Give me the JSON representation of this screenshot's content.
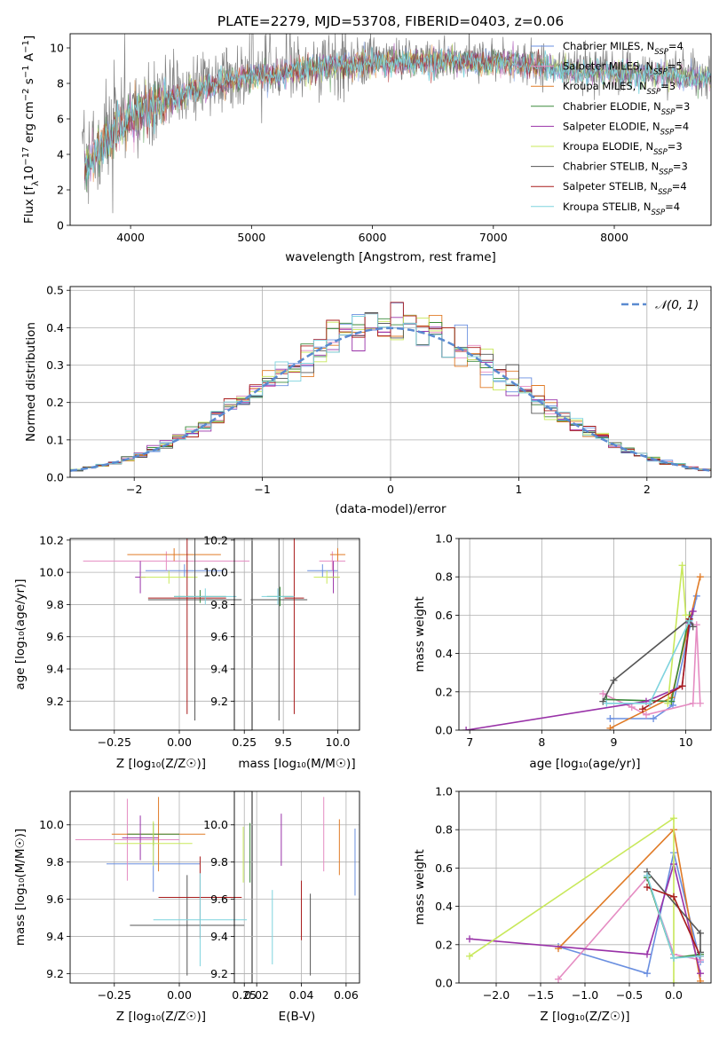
{
  "colors": [
    "#6a8fe0",
    "#e58cc2",
    "#e07b27",
    "#3b8a3b",
    "#9932a8",
    "#c8e85a",
    "#555555",
    "#a81b1b",
    "#7ed3de"
  ],
  "chart_data": [
    {
      "id": "spectrum",
      "type": "line",
      "title": "PLATE=2279, MJD=53708, FIBERID=0403, z=0.06",
      "xlabel": "wavelength [Angstrom, rest frame]",
      "ylabel_parts": [
        "Flux [f",
        "λ",
        "10",
        "−17",
        " erg cm",
        "−2",
        " s",
        "−1",
        " A",
        "−1",
        "]"
      ],
      "xlim": [
        3500,
        8800
      ],
      "ylim": [
        0,
        10.8
      ],
      "xticks": [
        4000,
        5000,
        6000,
        7000,
        8000
      ],
      "yticks": [
        0,
        2,
        4,
        6,
        8,
        10
      ],
      "grid": false,
      "legend_position": "right",
      "data_color": "#808080",
      "continuum": {
        "x": [
          3600,
          3800,
          4000,
          4200,
          4500,
          4800,
          5000,
          5300,
          5600,
          6000,
          6500,
          7000,
          7300,
          7500,
          8000,
          8500,
          8800
        ],
        "y": [
          3.4,
          4.8,
          6.3,
          7.0,
          7.8,
          8.3,
          8.6,
          8.8,
          9.1,
          9.3,
          9.4,
          9.4,
          9.2,
          9.0,
          8.8,
          8.6,
          8.4
        ]
      },
      "series": [
        {
          "label": "Chabrier MILES, N",
          "sub": "SSP",
          "tail": "=4"
        },
        {
          "label": "Salpeter MILES, N",
          "sub": "SSP",
          "tail": "=5"
        },
        {
          "label": "Kroupa MILES, N",
          "sub": "SSP",
          "tail": "=3"
        },
        {
          "label": "Chabrier ELODIE, N",
          "sub": "SSP",
          "tail": "=3"
        },
        {
          "label": "Salpeter ELODIE, N",
          "sub": "SSP",
          "tail": "=4"
        },
        {
          "label": "Kroupa ELODIE, N",
          "sub": "SSP",
          "tail": "=3"
        },
        {
          "label": "Chabrier STELIB, N",
          "sub": "SSP",
          "tail": "=3"
        },
        {
          "label": "Salpeter STELIB, N",
          "sub": "SSP",
          "tail": "=4"
        },
        {
          "label": "Kroupa STELIB, N",
          "sub": "SSP",
          "tail": "=4"
        }
      ]
    },
    {
      "id": "residuals",
      "type": "histogram",
      "xlabel": "(data-model)/error",
      "ylabel": "Normed distribution",
      "xlim": [
        -2.5,
        2.5
      ],
      "ylim": [
        0,
        0.51
      ],
      "xticks": [
        -2,
        -1,
        0,
        1,
        2
      ],
      "xtick_labels": [
        "−2",
        "−1",
        "0",
        "1",
        "2"
      ],
      "yticks": [
        0.0,
        0.1,
        0.2,
        0.3,
        0.4,
        0.5
      ],
      "ytick_labels": [
        "0.0",
        "0.1",
        "0.2",
        "0.3",
        "0.4",
        "0.5"
      ],
      "grid": true,
      "bin_width": 0.1,
      "reference_curve": {
        "label": "𝒩(0, 1)",
        "mean": 0,
        "sigma": 1,
        "color": "#5a8ad0"
      },
      "legend_position": "top-right"
    },
    {
      "id": "age-vs-Z",
      "type": "errorbar",
      "xlabel": "Z [log₁₀(Z/Z☉)]",
      "ylabel": "age  [log₁₀(age/yr)]",
      "xlim": [
        -0.42,
        0.28
      ],
      "ylim": [
        9.02,
        10.21
      ],
      "xticks": [
        -0.25,
        0.0,
        0.25
      ],
      "xtick_labels": [
        "−0.25",
        "0.00",
        "0.25"
      ],
      "yticks": [
        9.2,
        9.4,
        9.6,
        9.8,
        10.0,
        10.2
      ],
      "ytick_labels": [
        "9.2",
        "9.4",
        "9.6",
        "9.8",
        "10.0",
        "10.2"
      ],
      "points": [
        {
          "x": 0.02,
          "xerr": 0.15,
          "y": 10.01,
          "yerr": 0.04
        },
        {
          "x": -0.05,
          "xerr": 0.32,
          "y": 10.07,
          "yerr": 0.06
        },
        {
          "x": -0.02,
          "xerr": 0.18,
          "y": 10.11,
          "yerr": 0.04
        },
        {
          "x": 0.08,
          "xerr": 0.1,
          "y": 9.85,
          "yerr": 0.04
        },
        {
          "x": -0.15,
          "xerr": 0.02,
          "y": 9.97,
          "yerr": 0.1
        },
        {
          "x": -0.04,
          "xerr": 0.11,
          "y": 9.97,
          "yerr": 0.04
        },
        {
          "x": 0.06,
          "xerr": 0.18,
          "y": 9.83,
          "yerr": 0.75
        },
        {
          "x": 0.03,
          "xerr": 0.15,
          "y": 9.84,
          "yerr": 0.72
        },
        {
          "x": 0.1,
          "xerr": 0.12,
          "y": 9.85,
          "yerr": 0.05
        }
      ]
    },
    {
      "id": "age-vs-mass",
      "type": "errorbar",
      "xlabel": "mass [log₁₀(M/M☉)]",
      "ylabel": "",
      "xlim": [
        9.05,
        10.2
      ],
      "ylim": [
        9.02,
        10.21
      ],
      "xticks": [
        9.5,
        10.0
      ],
      "xtick_labels": [
        "9.5",
        "10.0"
      ],
      "yticks": [
        9.2,
        9.4,
        9.6,
        9.8,
        10.0,
        10.2
      ],
      "ytick_labels": [
        "9.2",
        "9.4",
        "9.6",
        "9.8",
        "10.0",
        "10.2"
      ],
      "points": [
        {
          "x": 9.86,
          "xerr": 0.14,
          "y": 10.01,
          "yerr": 0.04
        },
        {
          "x": 9.95,
          "xerr": 0.12,
          "y": 10.07,
          "yerr": 0.06
        },
        {
          "x": 10.0,
          "xerr": 0.07,
          "y": 10.11,
          "yerr": 0.04
        },
        {
          "x": 9.47,
          "xerr": 0.12,
          "y": 9.85,
          "yerr": 0.06
        },
        {
          "x": 9.96,
          "xerr": 0.05,
          "y": 9.97,
          "yerr": 0.1
        },
        {
          "x": 9.9,
          "xerr": 0.12,
          "y": 9.97,
          "yerr": 0.04
        },
        {
          "x": 9.46,
          "xerr": 0.26,
          "y": 9.83,
          "yerr": 0.75
        },
        {
          "x": 9.6,
          "xerr": 0.09,
          "y": 9.84,
          "yerr": 0.72
        },
        {
          "x": 9.45,
          "xerr": 0.15,
          "y": 9.85,
          "yerr": 0.05
        }
      ]
    },
    {
      "id": "massweight-vs-age",
      "type": "line",
      "xlabel": "age  [log₁₀(age/yr)]",
      "ylabel": "mass weight",
      "xlim": [
        6.85,
        10.35
      ],
      "ylim": [
        0,
        1
      ],
      "xticks": [
        7,
        8,
        9,
        10
      ],
      "xtick_labels": [
        "7",
        "8",
        "9",
        "10"
      ],
      "yticks": [
        0.0,
        0.2,
        0.4,
        0.6,
        0.8,
        1.0
      ],
      "ytick_labels": [
        "0.0",
        "0.2",
        "0.4",
        "0.6",
        "0.8",
        "1.0"
      ],
      "grid": true,
      "series": [
        {
          "x": [
            8.95,
            9.55,
            9.82,
            10.15
          ],
          "y": [
            0.06,
            0.06,
            0.13,
            0.7
          ]
        },
        {
          "x": [
            8.85,
            9.25,
            9.45,
            10.1,
            10.15,
            10.2
          ],
          "y": [
            0.19,
            0.12,
            0.08,
            0.14,
            0.55,
            0.14
          ]
        },
        {
          "x": [
            8.95,
            9.8,
            10.2
          ],
          "y": [
            0.01,
            0.17,
            0.8
          ]
        },
        {
          "x": [
            8.9,
            9.8,
            10.05
          ],
          "y": [
            0.16,
            0.15,
            0.6
          ]
        },
        {
          "x": [
            6.95,
            9.45,
            9.95,
            10.05,
            10.1
          ],
          "y": [
            0.0,
            0.15,
            0.23,
            0.56,
            0.62
          ]
        },
        {
          "x": [
            9.75,
            9.95,
            10.0
          ],
          "y": [
            0.14,
            0.86,
            0.6
          ]
        },
        {
          "x": [
            8.85,
            9.0,
            10.05,
            10.1
          ],
          "y": [
            0.15,
            0.26,
            0.58,
            0.54
          ]
        },
        {
          "x": [
            9.4,
            9.95,
            10.05
          ],
          "y": [
            0.11,
            0.23,
            0.58
          ]
        },
        {
          "x": [
            8.9,
            9.5,
            10.05
          ],
          "y": [
            0.14,
            0.14,
            0.57
          ]
        }
      ]
    },
    {
      "id": "mass-vs-Z",
      "type": "errorbar",
      "xlabel": "Z [log₁₀(Z/Z☉)]",
      "ylabel": "mass [log₁₀(M/M☉)]",
      "xlim": [
        -0.42,
        0.28
      ],
      "ylim": [
        9.15,
        10.18
      ],
      "xticks": [
        -0.25,
        0.0,
        0.25
      ],
      "xtick_labels": [
        "−0.25",
        "0.00",
        "0.25"
      ],
      "yticks": [
        9.2,
        9.4,
        9.6,
        9.8,
        10.0
      ],
      "ytick_labels": [
        "9.2",
        "9.4",
        "9.6",
        "9.8",
        "10.0"
      ],
      "points": [
        {
          "x": -0.1,
          "xerr": 0.18,
          "y": 9.79,
          "yerr": 0.15
        },
        {
          "x": -0.2,
          "xerr": 0.2,
          "y": 9.92,
          "yerr": 0.22
        },
        {
          "x": -0.08,
          "xerr": 0.18,
          "y": 9.95,
          "yerr": 0.2
        },
        {
          "x": -0.1,
          "xerr": 0.1,
          "y": 9.95,
          "yerr": 0.06
        },
        {
          "x": -0.15,
          "xerr": 0.07,
          "y": 9.93,
          "yerr": 0.12
        },
        {
          "x": -0.1,
          "xerr": 0.15,
          "y": 9.9,
          "yerr": 0.12
        },
        {
          "x": 0.03,
          "xerr": 0.22,
          "y": 9.46,
          "yerr": 0.27
        },
        {
          "x": 0.08,
          "xerr": 0.16,
          "y": 9.61,
          "yerr": 0.22
        },
        {
          "x": 0.08,
          "xerr": 0.18,
          "y": 9.49,
          "yerr": 0.25
        }
      ]
    },
    {
      "id": "mass-vs-EBV",
      "type": "errorbar",
      "xlabel": "E(B-V)",
      "ylabel": "",
      "xlim": [
        0.01,
        0.066
      ],
      "ylim": [
        9.15,
        10.18
      ],
      "xticks": [
        0.02,
        0.04,
        0.06
      ],
      "xtick_labels": [
        "0.02",
        "0.04",
        "0.06"
      ],
      "yticks": [
        9.2,
        9.4,
        9.6,
        9.8,
        10.0
      ],
      "ytick_labels": [
        "9.2",
        "9.4",
        "9.6",
        "9.8",
        "10.0"
      ],
      "points": [
        {
          "x": 0.064,
          "y": 9.8,
          "yerr": 0.18
        },
        {
          "x": 0.05,
          "y": 9.95,
          "yerr": 0.2
        },
        {
          "x": 0.057,
          "y": 9.88,
          "yerr": 0.15
        },
        {
          "x": 0.017,
          "y": 9.85,
          "yerr": 0.16
        },
        {
          "x": 0.031,
          "y": 9.92,
          "yerr": 0.14
        },
        {
          "x": 0.014,
          "y": 9.84,
          "yerr": 0.15
        },
        {
          "x": 0.044,
          "y": 9.41,
          "yerr": 0.22
        },
        {
          "x": 0.04,
          "y": 9.54,
          "yerr": 0.16
        },
        {
          "x": 0.027,
          "y": 9.45,
          "yerr": 0.2
        }
      ]
    },
    {
      "id": "massweight-vs-Z",
      "type": "line",
      "xlabel": "Z [log₁₀(Z/Z☉)]",
      "ylabel": "mass weight",
      "xlim": [
        -2.42,
        0.42
      ],
      "ylim": [
        0,
        1
      ],
      "xticks": [
        -2.0,
        -1.5,
        -1.0,
        -0.5,
        0.0
      ],
      "xtick_labels": [
        "−2.0",
        "−1.5",
        "−1.0",
        "−0.5",
        "0.0"
      ],
      "yticks": [
        0.0,
        0.2,
        0.4,
        0.6,
        0.8,
        1.0
      ],
      "ytick_labels": [
        "0.0",
        "0.2",
        "0.4",
        "0.6",
        "0.8",
        "1.0"
      ],
      "grid": true,
      "series": [
        {
          "x": [
            -1.3,
            -0.3,
            0.0,
            0.3
          ],
          "y": [
            0.19,
            0.05,
            0.68,
            0.11
          ]
        },
        {
          "x": [
            -1.3,
            -0.3,
            0.0,
            0.3
          ],
          "y": [
            0.02,
            0.55,
            0.15,
            0.12
          ]
        },
        {
          "x": [
            -1.3,
            0.0,
            0.3
          ],
          "y": [
            0.18,
            0.8,
            0.01
          ]
        },
        {
          "x": [
            -0.3,
            0.0,
            0.3
          ],
          "y": [
            0.55,
            0.13,
            0.15
          ]
        },
        {
          "x": [
            -2.3,
            -0.3,
            0.0,
            0.3
          ],
          "y": [
            0.23,
            0.15,
            0.62,
            0.05
          ]
        },
        {
          "x": [
            -2.3,
            0.0,
            0.0
          ],
          "y": [
            0.14,
            0.86,
            0.0
          ]
        },
        {
          "x": [
            -0.3,
            0.3,
            0.3
          ],
          "y": [
            0.58,
            0.26,
            0.16
          ]
        },
        {
          "x": [
            -0.3,
            0.0,
            0.3
          ],
          "y": [
            0.5,
            0.45,
            0.14
          ]
        },
        {
          "x": [
            -0.3,
            0.0,
            0.3
          ],
          "y": [
            0.56,
            0.13,
            0.14
          ]
        }
      ]
    }
  ]
}
